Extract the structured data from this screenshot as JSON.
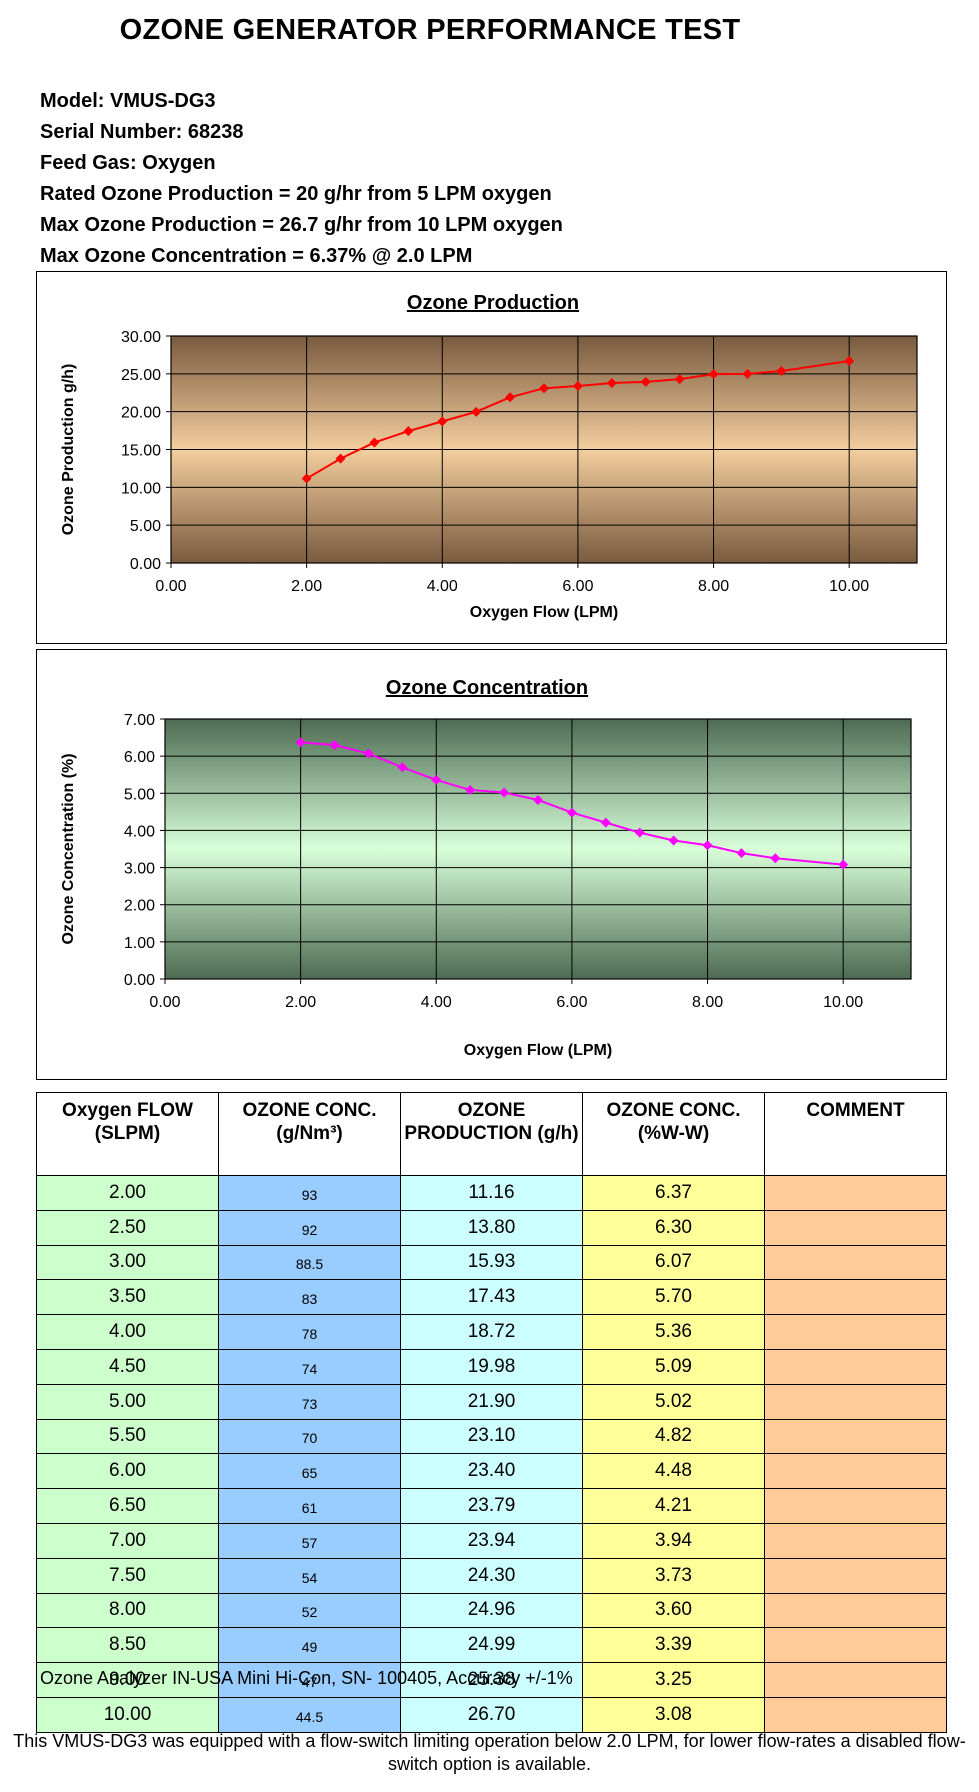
{
  "header": {
    "title": "OZONE GENERATOR PERFORMANCE TEST",
    "lines": [
      "Model: VMUS-DG3",
      "Serial Number: 68238",
      "Feed Gas: Oxygen",
      "Rated Ozone Production = 20 g/hr from 5 LPM oxygen",
      "Max Ozone Production = 26.7 g/hr from 10 LPM oxygen",
      "Max Ozone Concentration = 6.37% @ 2.0 LPM"
    ]
  },
  "chart_data": [
    {
      "type": "line",
      "title": "Ozone Production",
      "xlabel": "Oxygen Flow (LPM)",
      "ylabel": "Ozone Production g/h)",
      "xlim": [
        0,
        11
      ],
      "ylim": [
        0,
        30
      ],
      "xticks": [
        "0.00",
        "2.00",
        "4.00",
        "6.00",
        "8.00",
        "10.00"
      ],
      "yticks": [
        "0.00",
        "5.00",
        "10.00",
        "15.00",
        "20.00",
        "25.00",
        "30.00"
      ],
      "grid": true,
      "background": [
        "#7a5a3f",
        "#f3ce9e",
        "#7a5a3f"
      ],
      "series": [
        {
          "color": "#ff0000",
          "x": [
            2.0,
            2.5,
            3.0,
            3.5,
            4.0,
            4.5,
            5.0,
            5.5,
            6.0,
            6.5,
            7.0,
            7.5,
            8.0,
            8.5,
            9.0,
            10.0
          ],
          "y": [
            11.16,
            13.8,
            15.93,
            17.43,
            18.72,
            19.98,
            21.9,
            23.1,
            23.4,
            23.79,
            23.94,
            24.3,
            24.96,
            24.99,
            25.38,
            26.7
          ]
        }
      ]
    },
    {
      "type": "line",
      "title": "Ozone Concentration",
      "xlabel": "Oxygen Flow (LPM)",
      "ylabel": "Ozone Concentration (%)",
      "xlim": [
        0,
        11
      ],
      "ylim": [
        0,
        7
      ],
      "xticks": [
        "0.00",
        "2.00",
        "4.00",
        "6.00",
        "8.00",
        "10.00"
      ],
      "yticks": [
        "0.00",
        "1.00",
        "2.00",
        "3.00",
        "4.00",
        "5.00",
        "6.00",
        "7.00"
      ],
      "grid": true,
      "background": [
        "#4d6b52",
        "#d9ffd9",
        "#4d6b52"
      ],
      "series": [
        {
          "color": "#ff00ff",
          "x": [
            2.0,
            2.5,
            3.0,
            3.5,
            4.0,
            4.5,
            5.0,
            5.5,
            6.0,
            6.5,
            7.0,
            7.5,
            8.0,
            8.5,
            9.0,
            10.0
          ],
          "y": [
            6.37,
            6.3,
            6.07,
            5.7,
            5.36,
            5.09,
            5.02,
            4.82,
            4.48,
            4.21,
            3.94,
            3.73,
            3.6,
            3.39,
            3.25,
            3.08
          ]
        }
      ]
    }
  ],
  "table": {
    "headers": [
      "Oxygen FLOW (SLPM)",
      "OZONE CONC. (g/Nm³)",
      "OZONE PRODUCTION (g/h)",
      "OZONE CONC. (%W-W)",
      "COMMENT"
    ],
    "rows": [
      [
        "2.00",
        "93",
        "11.16",
        "6.37",
        ""
      ],
      [
        "2.50",
        "92",
        "13.80",
        "6.30",
        ""
      ],
      [
        "3.00",
        "88.5",
        "15.93",
        "6.07",
        ""
      ],
      [
        "3.50",
        "83",
        "17.43",
        "5.70",
        ""
      ],
      [
        "4.00",
        "78",
        "18.72",
        "5.36",
        ""
      ],
      [
        "4.50",
        "74",
        "19.98",
        "5.09",
        ""
      ],
      [
        "5.00",
        "73",
        "21.90",
        "5.02",
        ""
      ],
      [
        "5.50",
        "70",
        "23.10",
        "4.82",
        ""
      ],
      [
        "6.00",
        "65",
        "23.40",
        "4.48",
        ""
      ],
      [
        "6.50",
        "61",
        "23.79",
        "4.21",
        ""
      ],
      [
        "7.00",
        "57",
        "23.94",
        "3.94",
        ""
      ],
      [
        "7.50",
        "54",
        "24.30",
        "3.73",
        ""
      ],
      [
        "8.00",
        "52",
        "24.96",
        "3.60",
        ""
      ],
      [
        "8.50",
        "49",
        "24.99",
        "3.39",
        ""
      ],
      [
        "9.00",
        "47",
        "25.38",
        "3.25",
        ""
      ],
      [
        "10.00",
        "44.5",
        "26.70",
        "3.08",
        ""
      ]
    ]
  },
  "footer": {
    "analyzer": "Ozone Analyzer IN-USA Mini Hi-Con, SN- 100405, Accuracy +/-1%",
    "note": "This VMUS-DG3 was equipped with a flow-switch limiting operation below 2.0 LPM, for lower flow-rates a disabled flow-switch option is available."
  }
}
